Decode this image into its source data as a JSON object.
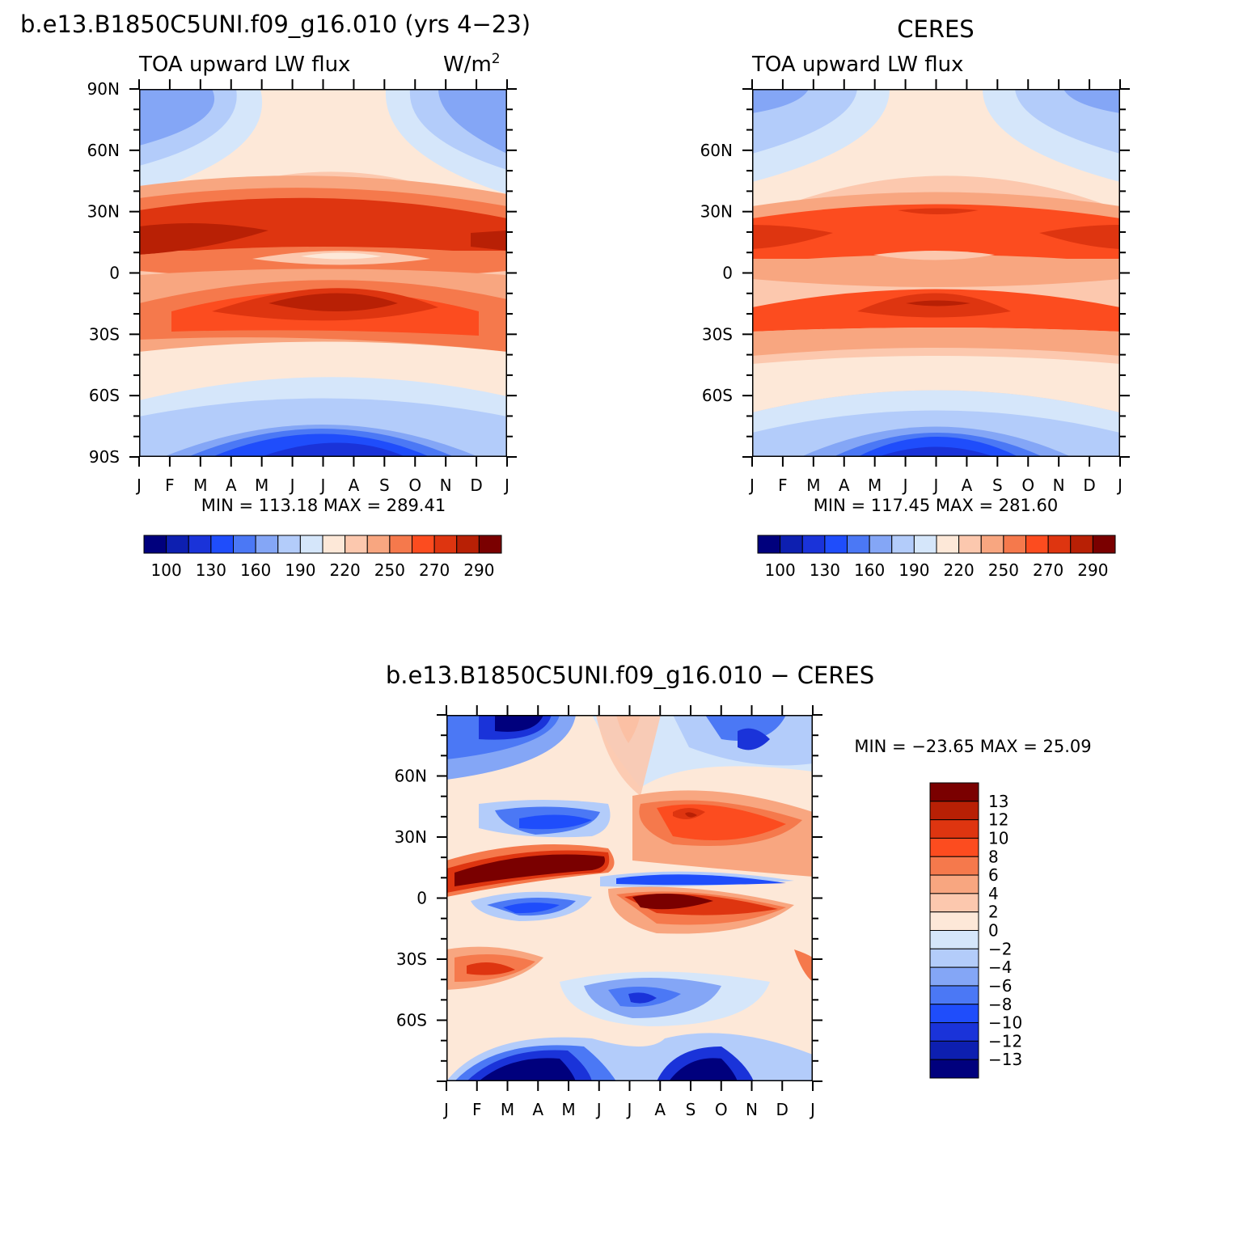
{
  "chart_data": [
    {
      "type": "heatmap",
      "id": "model",
      "title": "b.e13.B1850C5UNI.f09_g16.010 (yrs 4−23)",
      "subtitle_left": "TOA upward LW flux",
      "units": "W/m²",
      "stats": "MIN = 113.18 MAX = 289.41",
      "x_ticks": [
        "J",
        "F",
        "M",
        "A",
        "M",
        "J",
        "J",
        "A",
        "S",
        "O",
        "N",
        "D",
        "J"
      ],
      "y_ticks": [
        "90N",
        "60N",
        "30N",
        "0",
        "30S",
        "60S",
        "90S"
      ],
      "colorbar_labels": [
        "100",
        "130",
        "160",
        "190",
        "220",
        "250",
        "270",
        "290"
      ],
      "min": 113.18,
      "max": 289.41
    },
    {
      "type": "heatmap",
      "id": "obs",
      "title": "CERES",
      "subtitle_left": "TOA upward LW flux",
      "stats": "MIN = 117.45 MAX = 281.60",
      "x_ticks": [
        "J",
        "F",
        "M",
        "A",
        "M",
        "J",
        "J",
        "A",
        "S",
        "O",
        "N",
        "D",
        "J"
      ],
      "y_ticks": [
        "60N",
        "30N",
        "0",
        "30S",
        "60S"
      ],
      "colorbar_labels": [
        "100",
        "130",
        "160",
        "190",
        "220",
        "250",
        "270",
        "290"
      ],
      "min": 117.45,
      "max": 281.6
    },
    {
      "type": "heatmap",
      "id": "diff",
      "title": "b.e13.B1850C5UNI.f09_g16.010 − CERES",
      "stats": "MIN = −23.65 MAX =  25.09",
      "x_ticks": [
        "J",
        "F",
        "M",
        "A",
        "M",
        "J",
        "J",
        "A",
        "S",
        "O",
        "N",
        "D",
        "J"
      ],
      "y_ticks": [
        "60N",
        "30N",
        "0",
        "30S",
        "60S"
      ],
      "colorbar_labels": [
        "13",
        "12",
        "10",
        "8",
        "6",
        "4",
        "2",
        "0",
        "−2",
        "−4",
        "−6",
        "−8",
        "−10",
        "−12",
        "−13"
      ],
      "min": -23.65,
      "max": 25.09
    }
  ],
  "colors": {
    "flux_levels": [
      "#00007d",
      "#0d1fb0",
      "#1a33d9",
      "#1f4dfb",
      "#4b78f5",
      "#84a6f6",
      "#b3ccfa",
      "#d5e6fa",
      "#fde8d8",
      "#fcc8ae",
      "#f8a680",
      "#f5794c",
      "#fc4c1f",
      "#de3510",
      "#b82005",
      "#7a0000"
    ],
    "diff_levels": [
      "#7a0000",
      "#b82005",
      "#de3510",
      "#fc4c1f",
      "#f5794c",
      "#f8a680",
      "#fcc8ae",
      "#fde8d8",
      "#d5e6fa",
      "#b3ccfa",
      "#84a6f6",
      "#4b78f5",
      "#1f4dfb",
      "#1a33d9",
      "#0d1fb0",
      "#00007d"
    ]
  }
}
